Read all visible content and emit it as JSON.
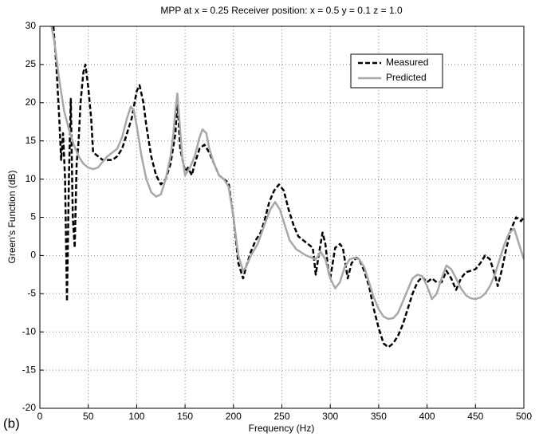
{
  "chart_data": {
    "type": "line",
    "title": "MPP at x = 0.25 Receiver position: x = 0.5 y = 0.1 z = 1.0",
    "xlabel": "Frequency (Hz)",
    "ylabel": "Green's Function (dB)",
    "annotation": "(b)",
    "xlim": [
      0,
      500
    ],
    "ylim": [
      -20,
      30
    ],
    "xticks": [
      0,
      50,
      100,
      150,
      200,
      250,
      300,
      350,
      400,
      450,
      500
    ],
    "yticks": [
      -20,
      -15,
      -10,
      -5,
      0,
      5,
      10,
      15,
      20,
      25,
      30
    ],
    "grid": true,
    "legend": "upper right",
    "series": [
      {
        "name": "Measured",
        "color": "#000000",
        "dash": true,
        "x": [
          14,
          17,
          20,
          22,
          24,
          26,
          28,
          30,
          32,
          34,
          36,
          38,
          40,
          42,
          45,
          47,
          50,
          53,
          55,
          60,
          65,
          70,
          75,
          80,
          85,
          90,
          95,
          100,
          103,
          107,
          110,
          115,
          120,
          125,
          130,
          135,
          140,
          142,
          145,
          150,
          153,
          157,
          160,
          165,
          170,
          175,
          180,
          185,
          190,
          195,
          200,
          205,
          210,
          213,
          218,
          223,
          228,
          232,
          237,
          242,
          247,
          252,
          257,
          262,
          267,
          272,
          277,
          282,
          285,
          288,
          292,
          295,
          298,
          300,
          305,
          310,
          313,
          318,
          322,
          327,
          330,
          335,
          340,
          345,
          350,
          355,
          360,
          365,
          370,
          375,
          380,
          385,
          390,
          395,
          400,
          405,
          410,
          415,
          420,
          425,
          430,
          435,
          440,
          445,
          450,
          455,
          460,
          465,
          470,
          473,
          477,
          482,
          487,
          492,
          497,
          500
        ],
        "values": [
          30,
          25,
          18,
          12.5,
          16,
          10,
          -6,
          10,
          20.5,
          5,
          1,
          12,
          15,
          20,
          24,
          25,
          22,
          18,
          13.5,
          13,
          12.5,
          12.5,
          12.5,
          13,
          14,
          16,
          18,
          21.5,
          22.3,
          20,
          17,
          13,
          10.5,
          9.3,
          10,
          12,
          16,
          20.5,
          14,
          11,
          11.5,
          10.5,
          12,
          14,
          14.5,
          13.5,
          12,
          10.5,
          10,
          9.5,
          5,
          -1,
          -3,
          -1.5,
          0.5,
          2,
          3,
          4.5,
          7,
          8.5,
          9.3,
          8.5,
          6,
          4,
          2.5,
          2,
          1.5,
          1,
          -2.5,
          0,
          3,
          1.5,
          -2,
          -3,
          1,
          1.5,
          1,
          -3,
          -1,
          -0.3,
          -0.5,
          -2,
          -4,
          -7,
          -9.5,
          -11.5,
          -12,
          -11.5,
          -10.5,
          -9,
          -7,
          -5,
          -3.5,
          -2.8,
          -3.5,
          -3,
          -3.5,
          -3.5,
          -2,
          -3,
          -4.5,
          -3,
          -2.2,
          -2,
          -1.8,
          -1,
          0,
          -0.5,
          -2.5,
          -4,
          -2,
          1,
          3.5,
          5,
          4.5,
          5
        ]
      },
      {
        "name": "Predicted",
        "color": "#a8a8a8",
        "dash": false,
        "x": [
          12,
          15,
          20,
          25,
          30,
          35,
          40,
          45,
          50,
          55,
          60,
          65,
          70,
          75,
          80,
          85,
          90,
          94,
          97,
          100,
          105,
          110,
          115,
          120,
          125,
          130,
          135,
          138,
          140,
          142,
          144,
          147,
          150,
          155,
          160,
          165,
          168,
          172,
          175,
          180,
          185,
          190,
          195,
          200,
          205,
          210,
          213,
          218,
          225,
          232,
          238,
          243,
          248,
          253,
          258,
          265,
          275,
          285,
          290,
          295,
          300,
          305,
          310,
          315,
          320,
          325,
          330,
          335,
          340,
          345,
          350,
          355,
          360,
          365,
          370,
          375,
          380,
          385,
          390,
          395,
          400,
          405,
          410,
          415,
          420,
          425,
          430,
          435,
          440,
          445,
          450,
          455,
          460,
          465,
          470,
          475,
          480,
          485,
          490,
          495,
          500
        ],
        "values": [
          30,
          28,
          23,
          19,
          16.5,
          14.5,
          13,
          12,
          11.5,
          11.3,
          11.5,
          12.3,
          13,
          13.5,
          14,
          15.5,
          18,
          19.5,
          19,
          17,
          13,
          10,
          8.3,
          7.7,
          8,
          10,
          13,
          16,
          19,
          21.2,
          18,
          13,
          10.5,
          11.5,
          13,
          15.5,
          16.5,
          16,
          14,
          12,
          10.5,
          10,
          9,
          5,
          0,
          -2,
          -1.5,
          0,
          1.5,
          4,
          6,
          7,
          6,
          4,
          2,
          0.8,
          0,
          -0.5,
          0.5,
          -0.5,
          -3,
          -4.3,
          -3.5,
          -1.5,
          -0.5,
          -0.3,
          -0.5,
          -1.5,
          -3.5,
          -5.5,
          -7,
          -8,
          -8.3,
          -8.2,
          -7.5,
          -6,
          -4.5,
          -3,
          -2.5,
          -2.7,
          -4,
          -5.7,
          -5,
          -3,
          -1.3,
          -1.8,
          -3,
          -4.3,
          -5.2,
          -5.6,
          -5.7,
          -5.5,
          -5,
          -4,
          -2.5,
          -0.5,
          1.5,
          3,
          3.5,
          1.5,
          -0.5
        ]
      }
    ]
  }
}
